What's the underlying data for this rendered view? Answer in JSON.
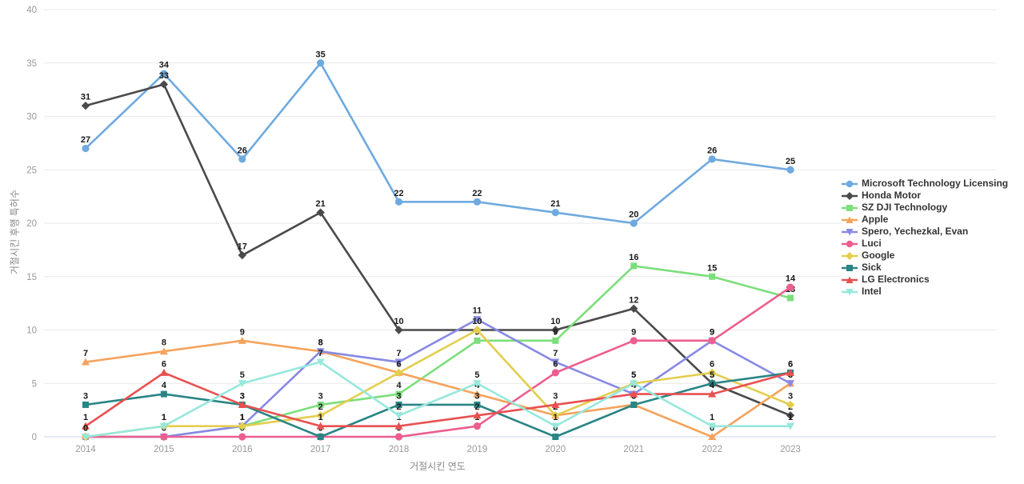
{
  "chart_data": {
    "type": "line",
    "title": "",
    "xlabel": "거절시킨 연도",
    "ylabel": "거절시킨 후행 특허수",
    "x": [
      2014,
      2015,
      2016,
      2017,
      2018,
      2019,
      2020,
      2021,
      2022,
      2023
    ],
    "ylim": [
      0,
      40
    ],
    "ytick_step": 5,
    "grid": true,
    "legend_position": "right",
    "axis_tick_color": "#999999",
    "gridline_color": "#e9e9e9",
    "baseline_color": "#ccd6eb",
    "data_label_color": "#1a1a1a",
    "series": [
      {
        "name": "Microsoft Technology Licensing",
        "color": "#6FAADF",
        "marker": "circle",
        "values": [
          27,
          34,
          26,
          35,
          22,
          22,
          21,
          20,
          26,
          25
        ]
      },
      {
        "name": "Honda Motor",
        "color": "#4A4A4A",
        "marker": "diamond",
        "values": [
          31,
          33,
          17,
          21,
          10,
          10,
          10,
          12,
          5,
          2
        ]
      },
      {
        "name": "SZ DJI Technology",
        "color": "#7CDE7C",
        "marker": "square",
        "values": [
          0,
          0,
          1,
          3,
          4,
          9,
          9,
          16,
          15,
          13
        ]
      },
      {
        "name": "Apple",
        "color": "#F5A35C",
        "marker": "triangle-up",
        "values": [
          7,
          8,
          9,
          8,
          6,
          4,
          2,
          3,
          0,
          5
        ]
      },
      {
        "name": "Spero, Yechezkal, Evan",
        "color": "#8889E4",
        "marker": "triangle-down",
        "values": [
          0,
          0,
          1,
          8,
          7,
          11,
          7,
          4,
          9,
          5
        ]
      },
      {
        "name": "Luci",
        "color": "#EC5E8F",
        "marker": "circle",
        "values": [
          0,
          0,
          0,
          0,
          0,
          1,
          6,
          9,
          9,
          14
        ]
      },
      {
        "name": "Google",
        "color": "#E3CE4E",
        "marker": "diamond",
        "values": [
          0,
          1,
          1,
          2,
          6,
          10,
          2,
          5,
          6,
          3
        ]
      },
      {
        "name": "Sick",
        "color": "#2A8585",
        "marker": "square",
        "values": [
          3,
          4,
          3,
          0,
          3,
          3,
          0,
          3,
          5,
          6
        ]
      },
      {
        "name": "LG Electronics",
        "color": "#E85050",
        "marker": "triangle-up",
        "values": [
          1,
          6,
          3,
          1,
          1,
          2,
          3,
          4,
          4,
          6
        ]
      },
      {
        "name": "Intel",
        "color": "#96E8DC",
        "marker": "triangle-down",
        "values": [
          0,
          1,
          5,
          7,
          2,
          5,
          1,
          5,
          1,
          1
        ]
      }
    ]
  }
}
